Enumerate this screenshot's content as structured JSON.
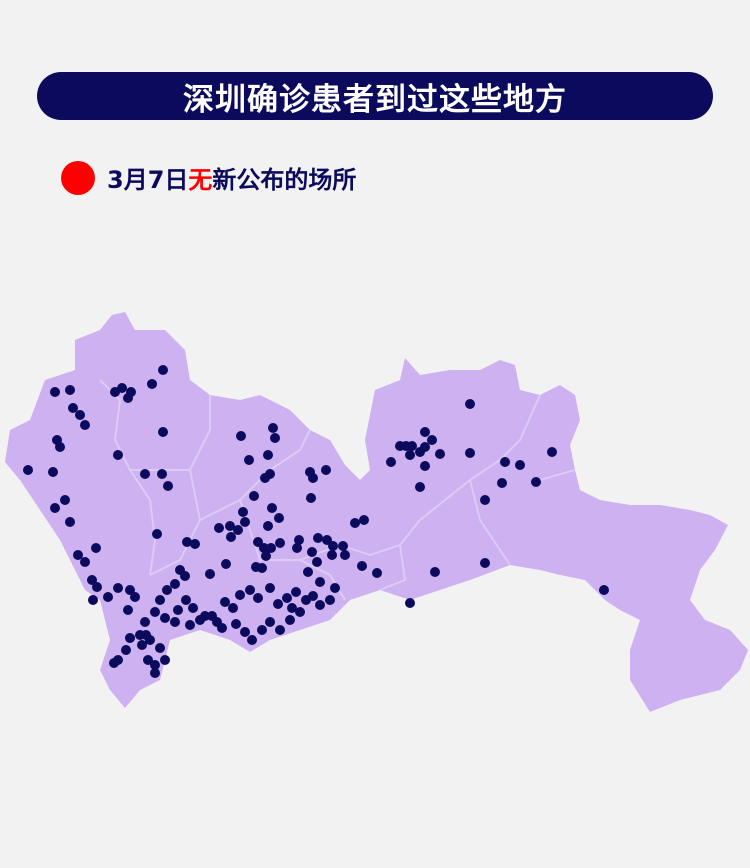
{
  "title": "深圳确诊患者到过这些地方",
  "legend": {
    "prefix": "3月7日",
    "highlight": "无",
    "suffix": "新公布的场所",
    "marker_color": "#ff0000",
    "highlight_color": "#ff0000"
  },
  "map": {
    "region_fill": "#cdb1f0",
    "border_color": "#dccbf5",
    "point_color": "#0b0a5c"
  }
}
